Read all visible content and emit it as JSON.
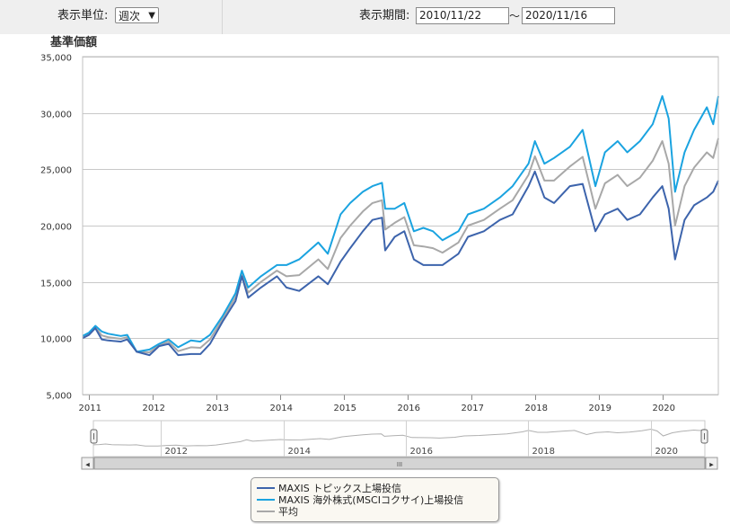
{
  "controls": {
    "unit_label": "表示単位:",
    "unit_value": "週次",
    "period_label": "表示期間:",
    "start_date": "2010/11/22",
    "range_sep": "〜",
    "end_date": "2020/11/16"
  },
  "navigator": {
    "year_labels": [
      "2012",
      "2014",
      "2016",
      "2018",
      "2020"
    ],
    "scroll_left": "◂",
    "scroll_right": "▸",
    "grip": "III"
  },
  "colors": {
    "topix": "#3d64ac",
    "foreign": "#1aa3e0",
    "average": "#a8a8a8"
  },
  "chart_data": {
    "type": "line",
    "ylabel": "基準価額",
    "ylim": [
      5000,
      35000
    ],
    "yticks": [
      5000,
      10000,
      15000,
      20000,
      25000,
      30000,
      35000
    ],
    "ytick_labels": [
      "5,000",
      "10,000",
      "15,000",
      "20,000",
      "25,000",
      "30,000",
      "35,000"
    ],
    "xlim": [
      2010.9,
      2020.88
    ],
    "x_tick_labels": [
      "2011",
      "2012",
      "2013",
      "2014",
      "2015",
      "2016",
      "2017",
      "2018",
      "2019",
      "2020"
    ],
    "grid": true,
    "legend_position": "bottom",
    "series": [
      {
        "name": "MAXIS トピックス上場投信",
        "color": "#3d64ac",
        "points": [
          [
            2010.9,
            10000
          ],
          [
            2011.0,
            10300
          ],
          [
            2011.1,
            10900
          ],
          [
            2011.2,
            9900
          ],
          [
            2011.3,
            9800
          ],
          [
            2011.5,
            9700
          ],
          [
            2011.6,
            9900
          ],
          [
            2011.75,
            8800
          ],
          [
            2011.95,
            8500
          ],
          [
            2012.1,
            9300
          ],
          [
            2012.25,
            9500
          ],
          [
            2012.4,
            8500
          ],
          [
            2012.6,
            8600
          ],
          [
            2012.75,
            8600
          ],
          [
            2012.9,
            9500
          ],
          [
            2013.1,
            11500
          ],
          [
            2013.3,
            13300
          ],
          [
            2013.4,
            15500
          ],
          [
            2013.5,
            13600
          ],
          [
            2013.7,
            14500
          ],
          [
            2013.95,
            15500
          ],
          [
            2014.1,
            14500
          ],
          [
            2014.3,
            14200
          ],
          [
            2014.6,
            15500
          ],
          [
            2014.75,
            14800
          ],
          [
            2014.95,
            16800
          ],
          [
            2015.1,
            18000
          ],
          [
            2015.3,
            19500
          ],
          [
            2015.45,
            20500
          ],
          [
            2015.6,
            20700
          ],
          [
            2015.65,
            17800
          ],
          [
            2015.8,
            19000
          ],
          [
            2015.95,
            19500
          ],
          [
            2016.1,
            17000
          ],
          [
            2016.25,
            16500
          ],
          [
            2016.4,
            16500
          ],
          [
            2016.55,
            16500
          ],
          [
            2016.8,
            17500
          ],
          [
            2016.95,
            19000
          ],
          [
            2017.2,
            19500
          ],
          [
            2017.45,
            20500
          ],
          [
            2017.65,
            21000
          ],
          [
            2017.9,
            23500
          ],
          [
            2018.0,
            24800
          ],
          [
            2018.15,
            22500
          ],
          [
            2018.3,
            22000
          ],
          [
            2018.55,
            23500
          ],
          [
            2018.75,
            23700
          ],
          [
            2018.95,
            19500
          ],
          [
            2019.1,
            21000
          ],
          [
            2019.3,
            21500
          ],
          [
            2019.45,
            20500
          ],
          [
            2019.65,
            21000
          ],
          [
            2019.85,
            22500
          ],
          [
            2020.0,
            23500
          ],
          [
            2020.1,
            21500
          ],
          [
            2020.2,
            17000
          ],
          [
            2020.35,
            20500
          ],
          [
            2020.5,
            21800
          ],
          [
            2020.7,
            22500
          ],
          [
            2020.8,
            23000
          ],
          [
            2020.88,
            24000
          ]
        ]
      },
      {
        "name": "MAXIS 海外株式(MSCIコクサイ)上場投信",
        "color": "#1aa3e0",
        "points": [
          [
            2010.9,
            10200
          ],
          [
            2011.0,
            10500
          ],
          [
            2011.1,
            11100
          ],
          [
            2011.2,
            10600
          ],
          [
            2011.3,
            10400
          ],
          [
            2011.5,
            10200
          ],
          [
            2011.6,
            10300
          ],
          [
            2011.75,
            8800
          ],
          [
            2011.95,
            9000
          ],
          [
            2012.1,
            9500
          ],
          [
            2012.25,
            9900
          ],
          [
            2012.4,
            9200
          ],
          [
            2012.6,
            9800
          ],
          [
            2012.75,
            9700
          ],
          [
            2012.9,
            10300
          ],
          [
            2013.1,
            12000
          ],
          [
            2013.3,
            14000
          ],
          [
            2013.4,
            16000
          ],
          [
            2013.5,
            14500
          ],
          [
            2013.7,
            15500
          ],
          [
            2013.95,
            16500
          ],
          [
            2014.1,
            16500
          ],
          [
            2014.3,
            17000
          ],
          [
            2014.6,
            18500
          ],
          [
            2014.75,
            17500
          ],
          [
            2014.95,
            21000
          ],
          [
            2015.1,
            22000
          ],
          [
            2015.3,
            23000
          ],
          [
            2015.45,
            23500
          ],
          [
            2015.6,
            23800
          ],
          [
            2015.65,
            21500
          ],
          [
            2015.8,
            21500
          ],
          [
            2015.95,
            22000
          ],
          [
            2016.1,
            19500
          ],
          [
            2016.25,
            19800
          ],
          [
            2016.4,
            19500
          ],
          [
            2016.55,
            18700
          ],
          [
            2016.8,
            19500
          ],
          [
            2016.95,
            21000
          ],
          [
            2017.2,
            21500
          ],
          [
            2017.45,
            22500
          ],
          [
            2017.65,
            23500
          ],
          [
            2017.9,
            25500
          ],
          [
            2018.0,
            27500
          ],
          [
            2018.15,
            25500
          ],
          [
            2018.3,
            26000
          ],
          [
            2018.55,
            27000
          ],
          [
            2018.75,
            28500
          ],
          [
            2018.95,
            23500
          ],
          [
            2019.1,
            26500
          ],
          [
            2019.3,
            27500
          ],
          [
            2019.45,
            26500
          ],
          [
            2019.65,
            27500
          ],
          [
            2019.85,
            29000
          ],
          [
            2020.0,
            31500
          ],
          [
            2020.1,
            29500
          ],
          [
            2020.2,
            23000
          ],
          [
            2020.35,
            26500
          ],
          [
            2020.5,
            28500
          ],
          [
            2020.7,
            30500
          ],
          [
            2020.8,
            29000
          ],
          [
            2020.88,
            31500
          ]
        ]
      },
      {
        "name": "平均",
        "color": "#a8a8a8",
        "points": [
          [
            2010.9,
            10100
          ],
          [
            2011.0,
            10400
          ],
          [
            2011.1,
            11000
          ],
          [
            2011.2,
            10250
          ],
          [
            2011.3,
            10100
          ],
          [
            2011.5,
            9950
          ],
          [
            2011.6,
            10100
          ],
          [
            2011.75,
            8800
          ],
          [
            2011.95,
            8750
          ],
          [
            2012.1,
            9400
          ],
          [
            2012.25,
            9700
          ],
          [
            2012.4,
            8850
          ],
          [
            2012.6,
            9200
          ],
          [
            2012.75,
            9150
          ],
          [
            2012.9,
            9900
          ],
          [
            2013.1,
            11750
          ],
          [
            2013.3,
            13650
          ],
          [
            2013.4,
            15750
          ],
          [
            2013.5,
            14050
          ],
          [
            2013.7,
            15000
          ],
          [
            2013.95,
            16000
          ],
          [
            2014.1,
            15500
          ],
          [
            2014.3,
            15600
          ],
          [
            2014.6,
            17000
          ],
          [
            2014.75,
            16150
          ],
          [
            2014.95,
            18900
          ],
          [
            2015.1,
            20000
          ],
          [
            2015.3,
            21250
          ],
          [
            2015.45,
            22000
          ],
          [
            2015.6,
            22250
          ],
          [
            2015.65,
            19650
          ],
          [
            2015.8,
            20250
          ],
          [
            2015.95,
            20750
          ],
          [
            2016.1,
            18250
          ],
          [
            2016.25,
            18150
          ],
          [
            2016.4,
            18000
          ],
          [
            2016.55,
            17600
          ],
          [
            2016.8,
            18500
          ],
          [
            2016.95,
            20000
          ],
          [
            2017.2,
            20500
          ],
          [
            2017.45,
            21500
          ],
          [
            2017.65,
            22250
          ],
          [
            2017.9,
            24500
          ],
          [
            2018.0,
            26150
          ],
          [
            2018.15,
            24000
          ],
          [
            2018.3,
            24000
          ],
          [
            2018.55,
            25250
          ],
          [
            2018.75,
            26100
          ],
          [
            2018.95,
            21500
          ],
          [
            2019.1,
            23750
          ],
          [
            2019.3,
            24500
          ],
          [
            2019.45,
            23500
          ],
          [
            2019.65,
            24250
          ],
          [
            2019.85,
            25750
          ],
          [
            2020.0,
            27500
          ],
          [
            2020.1,
            25500
          ],
          [
            2020.2,
            20000
          ],
          [
            2020.35,
            23500
          ],
          [
            2020.5,
            25150
          ],
          [
            2020.7,
            26500
          ],
          [
            2020.8,
            26000
          ],
          [
            2020.88,
            27750
          ]
        ]
      }
    ]
  }
}
